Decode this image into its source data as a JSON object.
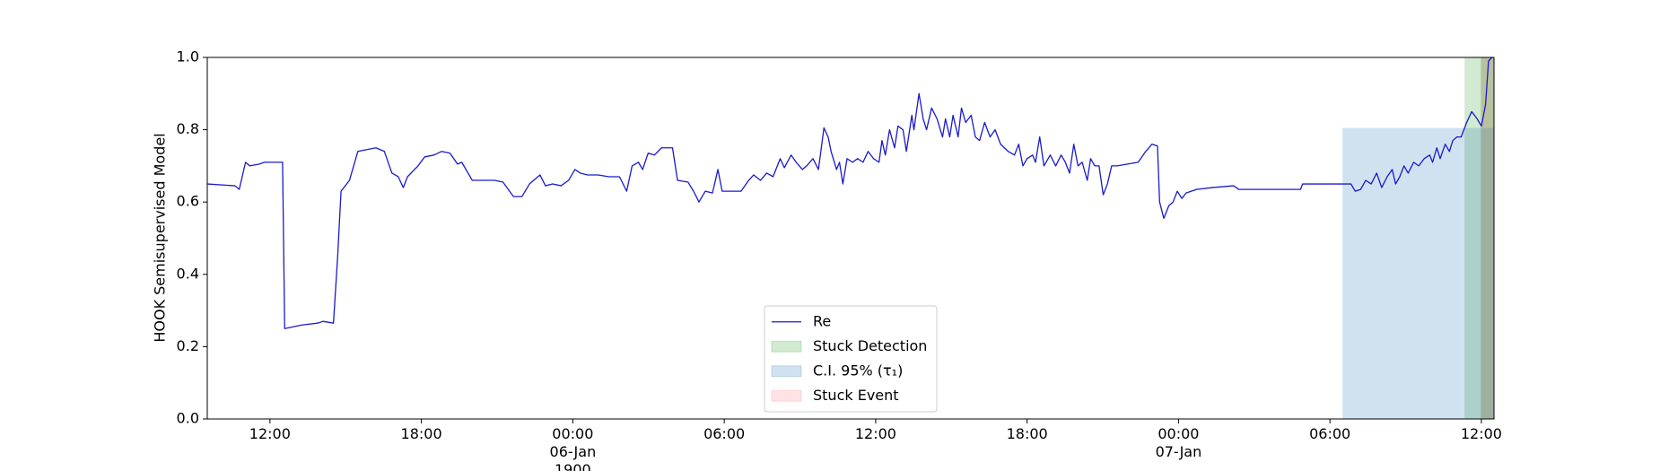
{
  "chart_data": {
    "type": "line",
    "ylabel": "HOOK Semisupervised Model",
    "xlim": [
      "1900-01-05 09:31",
      "1900-01-07 12:30"
    ],
    "ylim": [
      0,
      1
    ],
    "yticks": [
      {
        "value": 0,
        "label": "0.0"
      },
      0.2,
      0.4,
      0.6,
      0.8,
      {
        "value": 1,
        "label": "1.0"
      }
    ],
    "xticks": [
      {
        "value": "1900-01-05 12:00",
        "label": "12:00"
      },
      {
        "value": "1900-01-05 18:00",
        "label": "18:00"
      },
      {
        "value": "1900-01-06 00:00",
        "label": "00:00\n06-Jan\n1900"
      },
      {
        "value": "1900-01-06 06:00",
        "label": "06:00"
      },
      {
        "value": "1900-01-06 12:00",
        "label": "12:00"
      },
      {
        "value": "1900-01-06 18:00",
        "label": "18:00"
      },
      {
        "value": "1900-01-07 00:00",
        "label": "00:00\n07-Jan"
      },
      {
        "value": "1900-01-07 06:00",
        "label": "06:00"
      },
      {
        "value": "1900-01-07 12:00",
        "label": "12:00"
      }
    ],
    "legend": "lower center",
    "x": [
      "1900-01-05 09:31",
      "1900-01-05 10:37",
      "1900-01-05 10:47",
      "1900-01-05 11:02",
      "1900-01-05 11:12",
      "1900-01-05 11:35",
      "1900-01-05 11:47",
      "1900-01-05 12:30",
      "1900-01-05 12:35",
      "1900-01-05 13:16",
      "1900-01-05 13:53",
      "1900-01-05 14:06",
      "1900-01-05 14:31",
      "1900-01-05 14:41",
      "1900-01-05 14:49",
      "1900-01-05 15:09",
      "1900-01-05 15:29",
      "1900-01-05 16:12",
      "1900-01-05 16:32",
      "1900-01-05 16:50",
      "1900-01-05 17:05",
      "1900-01-05 17:17",
      "1900-01-05 17:27",
      "1900-01-05 17:52",
      "1900-01-05 18:08",
      "1900-01-05 18:30",
      "1900-01-05 18:48",
      "1900-01-05 19:08",
      "1900-01-05 19:26",
      "1900-01-05 19:36",
      "1900-01-05 20:01",
      "1900-01-05 20:54",
      "1900-01-05 21:14",
      "1900-01-05 21:39",
      "1900-01-05 21:59",
      "1900-01-05 22:17",
      "1900-01-05 22:42",
      "1900-01-05 22:55",
      "1900-01-05 23:12",
      "1900-01-05 23:32",
      "1900-01-05 23:50",
      "1900-01-06 00:05",
      "1900-01-06 00:18",
      "1900-01-06 00:35",
      "1900-01-06 01:00",
      "1900-01-06 01:26",
      "1900-01-06 01:51",
      "1900-01-06 02:08",
      "1900-01-06 02:21",
      "1900-01-06 02:36",
      "1900-01-06 02:46",
      "1900-01-06 02:59",
      "1900-01-06 03:14",
      "1900-01-06 03:31",
      "1900-01-06 03:57",
      "1900-01-06 04:09",
      "1900-01-06 04:34",
      "1900-01-06 04:47",
      "1900-01-06 05:00",
      "1900-01-06 05:15",
      "1900-01-06 05:32",
      "1900-01-06 05:45",
      "1900-01-06 05:55",
      "1900-01-06 06:28",
      "1900-01-06 06:40",
      "1900-01-06 06:58",
      "1900-01-06 07:10",
      "1900-01-06 07:26",
      "1900-01-06 07:41",
      "1900-01-06 07:56",
      "1900-01-06 08:13",
      "1900-01-06 08:23",
      "1900-01-06 08:39",
      "1900-01-06 08:51",
      "1900-01-06 09:06",
      "1900-01-06 09:16",
      "1900-01-06 09:31",
      "1900-01-06 09:44",
      "1900-01-06 09:57",
      "1900-01-06 10:07",
      "1900-01-06 10:14",
      "1900-01-06 10:27",
      "1900-01-06 10:34",
      "1900-01-06 10:42",
      "1900-01-06 10:52",
      "1900-01-06 11:05",
      "1900-01-06 11:17",
      "1900-01-06 11:30",
      "1900-01-06 11:42",
      "1900-01-06 11:55",
      "1900-01-06 12:08",
      "1900-01-06 12:15",
      "1900-01-06 12:23",
      "1900-01-06 12:33",
      "1900-01-06 12:45",
      "1900-01-06 12:53",
      "1900-01-06 13:05",
      "1900-01-06 13:13",
      "1900-01-06 13:26",
      "1900-01-06 13:31",
      "1900-01-06 13:43",
      "1900-01-06 13:53",
      "1900-01-06 14:01",
      "1900-01-06 14:13",
      "1900-01-06 14:26",
      "1900-01-06 14:39",
      "1900-01-06 14:46",
      "1900-01-06 14:56",
      "1900-01-06 15:04",
      "1900-01-06 15:16",
      "1900-01-06 15:24",
      "1900-01-06 15:34",
      "1900-01-06 15:47",
      "1900-01-06 15:57",
      "1900-01-06 16:07",
      "1900-01-06 16:19",
      "1900-01-06 16:32",
      "1900-01-06 16:44",
      "1900-01-06 16:57",
      "1900-01-06 17:15",
      "1900-01-06 17:30",
      "1900-01-06 17:40",
      "1900-01-06 17:50",
      "1900-01-06 18:00",
      "1900-01-06 18:13",
      "1900-01-06 18:20",
      "1900-01-06 18:30",
      "1900-01-06 18:40",
      "1900-01-06 18:55",
      "1900-01-06 19:08",
      "1900-01-06 19:21",
      "1900-01-06 19:31",
      "1900-01-06 19:41",
      "1900-01-06 19:51",
      "1900-01-06 20:01",
      "1900-01-06 20:11",
      "1900-01-06 20:23",
      "1900-01-06 20:31",
      "1900-01-06 20:41",
      "1900-01-06 20:51",
      "1900-01-06 21:01",
      "1900-01-06 21:11",
      "1900-01-06 21:21",
      "1900-01-06 21:34",
      "1900-01-06 21:59",
      "1900-01-06 22:24",
      "1900-01-06 22:42",
      "1900-01-06 22:57",
      "1900-01-06 23:10",
      "1900-01-06 23:15",
      "1900-01-06 23:25",
      "1900-01-06 23:37",
      "1900-01-06 23:47",
      "1900-01-06 23:57",
      "1900-01-07 00:08",
      "1900-01-07 00:18",
      "1900-01-07 00:43",
      "1900-01-07 01:21",
      "1900-01-07 02:11",
      "1900-01-07 02:23",
      "1900-01-07 04:50",
      "1900-01-07 04:55",
      "1900-01-07 06:50",
      "1900-01-07 07:00",
      "1900-01-07 07:13",
      "1900-01-07 07:25",
      "1900-01-07 07:38",
      "1900-01-07 07:51",
      "1900-01-07 08:03",
      "1900-01-07 08:16",
      "1900-01-07 08:28",
      "1900-01-07 08:36",
      "1900-01-07 08:46",
      "1900-01-07 08:56",
      "1900-01-07 09:06",
      "1900-01-07 09:19",
      "1900-01-07 09:31",
      "1900-01-07 09:44",
      "1900-01-07 09:57",
      "1900-01-07 10:04",
      "1900-01-07 10:14",
      "1900-01-07 10:22",
      "1900-01-07 10:34",
      "1900-01-07 10:44",
      "1900-01-07 10:52",
      "1900-01-07 11:02",
      "1900-01-07 11:12",
      "1900-01-07 11:25",
      "1900-01-07 11:37",
      "1900-01-07 11:50",
      "1900-01-07 12:00",
      "1900-01-07 12:10",
      "1900-01-07 12:17",
      "1900-01-07 12:25"
    ],
    "series": [
      {
        "name": "Re",
        "color": "#1a1acc",
        "values": [
          0.65,
          0.645,
          0.635,
          0.71,
          0.7,
          0.705,
          0.71,
          0.71,
          0.25,
          0.26,
          0.265,
          0.27,
          0.265,
          0.45,
          0.63,
          0.66,
          0.74,
          0.75,
          0.74,
          0.68,
          0.67,
          0.64,
          0.67,
          0.7,
          0.725,
          0.73,
          0.74,
          0.735,
          0.705,
          0.71,
          0.66,
          0.66,
          0.655,
          0.615,
          0.615,
          0.65,
          0.675,
          0.645,
          0.65,
          0.645,
          0.66,
          0.69,
          0.68,
          0.675,
          0.675,
          0.67,
          0.67,
          0.63,
          0.7,
          0.71,
          0.69,
          0.735,
          0.73,
          0.75,
          0.75,
          0.66,
          0.655,
          0.63,
          0.6,
          0.63,
          0.625,
          0.69,
          0.63,
          0.63,
          0.63,
          0.66,
          0.675,
          0.66,
          0.68,
          0.67,
          0.72,
          0.695,
          0.73,
          0.71,
          0.69,
          0.7,
          0.72,
          0.69,
          0.805,
          0.78,
          0.74,
          0.69,
          0.71,
          0.65,
          0.72,
          0.71,
          0.72,
          0.71,
          0.74,
          0.72,
          0.71,
          0.77,
          0.73,
          0.8,
          0.75,
          0.81,
          0.8,
          0.74,
          0.84,
          0.8,
          0.9,
          0.83,
          0.8,
          0.86,
          0.83,
          0.78,
          0.83,
          0.78,
          0.84,
          0.78,
          0.86,
          0.82,
          0.84,
          0.78,
          0.77,
          0.82,
          0.78,
          0.8,
          0.76,
          0.74,
          0.73,
          0.76,
          0.7,
          0.72,
          0.73,
          0.71,
          0.78,
          0.7,
          0.73,
          0.7,
          0.73,
          0.71,
          0.68,
          0.76,
          0.7,
          0.71,
          0.66,
          0.72,
          0.7,
          0.7,
          0.62,
          0.65,
          0.7,
          0.7,
          0.705,
          0.71,
          0.74,
          0.76,
          0.755,
          0.6,
          0.555,
          0.59,
          0.6,
          0.63,
          0.61,
          0.625,
          0.635,
          0.64,
          0.645,
          0.635,
          0.635,
          0.65,
          0.65,
          0.63,
          0.635,
          0.66,
          0.65,
          0.68,
          0.64,
          0.67,
          0.69,
          0.65,
          0.67,
          0.7,
          0.68,
          0.71,
          0.7,
          0.72,
          0.73,
          0.71,
          0.75,
          0.72,
          0.76,
          0.74,
          0.77,
          0.78,
          0.78,
          0.82,
          0.85,
          0.83,
          0.81,
          0.87,
          0.99,
          1.0
        ]
      }
    ],
    "spans": [
      {
        "name": "Stuck Detection",
        "color": "rgba(44,160,44,0.22)",
        "ranges": [
          [
            "1900-01-07 11:20",
            "1900-01-07 12:30"
          ],
          [
            "1900-01-07 11:58",
            "1900-01-07 12:30"
          ]
        ],
        "top": 1
      },
      {
        "name": "C.I. 95% (τ₁)",
        "color": "rgba(31,119,180,0.21)",
        "ranges": [
          [
            "1900-01-07 06:30",
            "1900-01-07 12:30"
          ]
        ],
        "top": 0.805
      },
      {
        "name": "Stuck Event",
        "color": "rgba(255,60,80,0.15)",
        "ranges": [
          [
            "1900-01-07 12:00",
            "1900-01-07 12:30"
          ]
        ],
        "top": 1
      }
    ]
  }
}
